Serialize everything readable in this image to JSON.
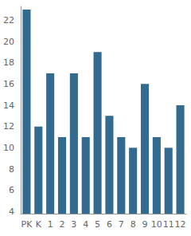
{
  "chart_data": {
    "type": "bar",
    "categories": [
      "PK",
      "K",
      "1",
      "2",
      "3",
      "4",
      "5",
      "6",
      "7",
      "8",
      "9",
      "10",
      "11",
      "12"
    ],
    "values": [
      23,
      12,
      17,
      11,
      17,
      11,
      19,
      13,
      11,
      10,
      16,
      11,
      10,
      14
    ],
    "color": "#336a90",
    "ylim": [
      3.8,
      23.3
    ],
    "yticks": [
      4,
      6,
      8,
      10,
      12,
      14,
      16,
      18,
      20,
      22
    ],
    "grid": false
  }
}
